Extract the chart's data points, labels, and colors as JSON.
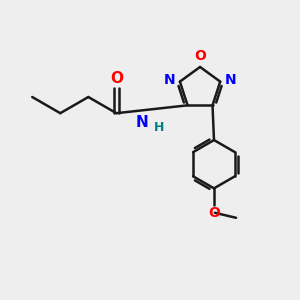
{
  "bg_color": "#eeeeee",
  "bond_color": "#1a1a1a",
  "N_color": "#0000ff",
  "O_color": "#ff0000",
  "NH_color": "#008080",
  "line_width": 1.8,
  "font_size": 10,
  "fig_size": [
    3.0,
    3.0
  ],
  "dpi": 100,
  "xlim": [
    0,
    10
  ],
  "ylim": [
    0,
    10
  ]
}
